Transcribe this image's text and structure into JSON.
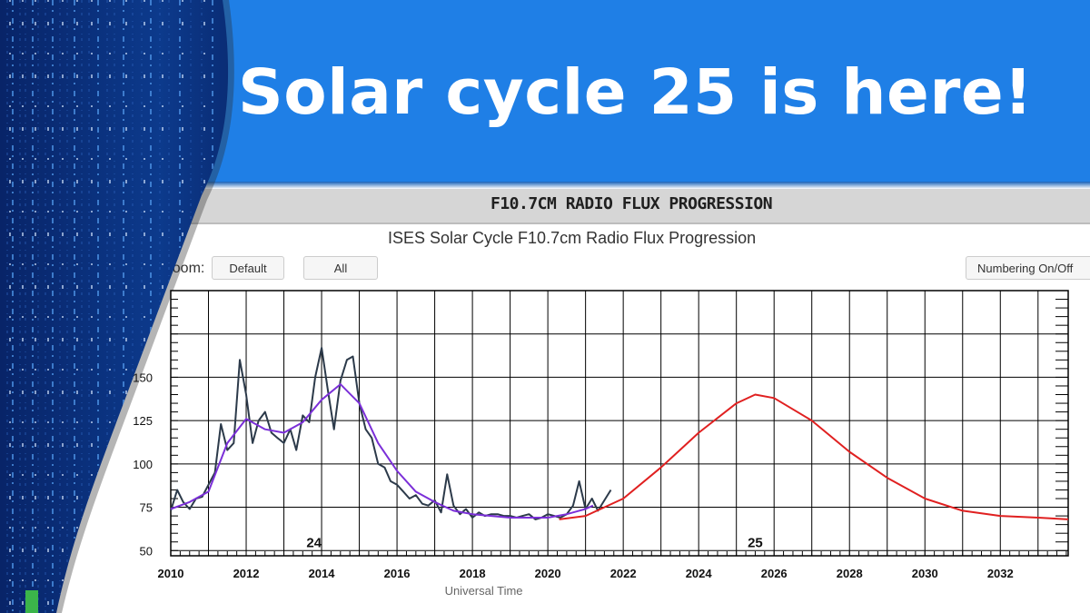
{
  "headline": "Solar cycle 25 is here!",
  "panel_title": "F10.7CM RADIO FLUX PROGRESSION",
  "zoom_label": "Zoom:",
  "buttons": {
    "default": "Default",
    "all": "All",
    "numbering": "Numbering On/Off"
  },
  "colors": {
    "banner": "#1f7fe6",
    "observed": "#2c3a4a",
    "smoothed": "#7b2fd8",
    "predicted": "#e02020",
    "spectrogram": "#0a2a6e"
  },
  "chart_data": {
    "type": "line",
    "title": "ISES Solar Cycle F10.7cm Radio Flux Progression",
    "xlabel": "Universal Time",
    "ylabel": "",
    "xlim": [
      2010,
      2033.8
    ],
    "ylim": [
      47,
      200
    ],
    "x_ticks": [
      "2010",
      "2012",
      "2014",
      "2016",
      "2018",
      "2020",
      "2022",
      "2024",
      "2026",
      "2028",
      "2030",
      "2032"
    ],
    "y_ticks": [
      "50",
      "75",
      "100",
      "125",
      "150"
    ],
    "grid": true,
    "cycle_labels": [
      {
        "text": "24",
        "x": 2013.8,
        "y": 52
      },
      {
        "text": "25",
        "x": 2025.5,
        "y": 52
      }
    ],
    "series": [
      {
        "role": "observed",
        "x": [
          2010.0,
          2010.17,
          2010.33,
          2010.5,
          2010.67,
          2010.83,
          2011.0,
          2011.17,
          2011.33,
          2011.5,
          2011.67,
          2011.83,
          2012.0,
          2012.17,
          2012.33,
          2012.5,
          2012.67,
          2012.83,
          2013.0,
          2013.17,
          2013.33,
          2013.5,
          2013.67,
          2013.83,
          2014.0,
          2014.17,
          2014.33,
          2014.5,
          2014.67,
          2014.83,
          2015.0,
          2015.17,
          2015.33,
          2015.5,
          2015.67,
          2015.83,
          2016.0,
          2016.17,
          2016.33,
          2016.5,
          2016.67,
          2016.83,
          2017.0,
          2017.17,
          2017.33,
          2017.5,
          2017.67,
          2017.83,
          2018.0,
          2018.17,
          2018.33,
          2018.5,
          2018.67,
          2018.83,
          2019.0,
          2019.17,
          2019.33,
          2019.5,
          2019.67,
          2019.83,
          2020.0,
          2020.17,
          2020.33,
          2020.5,
          2020.67,
          2020.83,
          2021.0,
          2021.17,
          2021.33,
          2021.5,
          2021.67
        ],
        "y": [
          73,
          85,
          78,
          74,
          80,
          81,
          88,
          95,
          123,
          108,
          112,
          160,
          140,
          112,
          125,
          130,
          118,
          115,
          112,
          120,
          108,
          128,
          124,
          150,
          167,
          142,
          120,
          148,
          160,
          162,
          135,
          120,
          115,
          100,
          98,
          90,
          88,
          84,
          80,
          82,
          77,
          76,
          79,
          72,
          94,
          76,
          71,
          74,
          69,
          72,
          70,
          71,
          71,
          70,
          70,
          69,
          70,
          71,
          68,
          69,
          71,
          70,
          69,
          71,
          76,
          90,
          74,
          80,
          73,
          79,
          85
        ]
      },
      {
        "role": "smoothed",
        "x": [
          2010.0,
          2010.5,
          2011.0,
          2011.5,
          2012.0,
          2012.5,
          2013.0,
          2013.5,
          2014.0,
          2014.5,
          2015.0,
          2015.5,
          2016.0,
          2016.5,
          2017.0,
          2017.5,
          2018.0,
          2018.5,
          2019.0,
          2019.5,
          2020.0,
          2020.5,
          2021.0,
          2021.2
        ],
        "y": [
          74,
          78,
          84,
          112,
          126,
          120,
          118,
          124,
          137,
          146,
          135,
          112,
          96,
          84,
          78,
          73,
          71,
          70,
          69,
          69,
          69,
          71,
          74,
          76
        ]
      },
      {
        "role": "predicted",
        "x": [
          2020.3,
          2021.0,
          2022.0,
          2023.0,
          2024.0,
          2025.0,
          2025.5,
          2026.0,
          2027.0,
          2028.0,
          2029.0,
          2030.0,
          2031.0,
          2032.0,
          2033.0,
          2033.8
        ],
        "y": [
          68,
          70,
          80,
          98,
          118,
          135,
          140,
          138,
          125,
          107,
          92,
          80,
          73,
          70,
          69,
          68
        ]
      }
    ]
  }
}
